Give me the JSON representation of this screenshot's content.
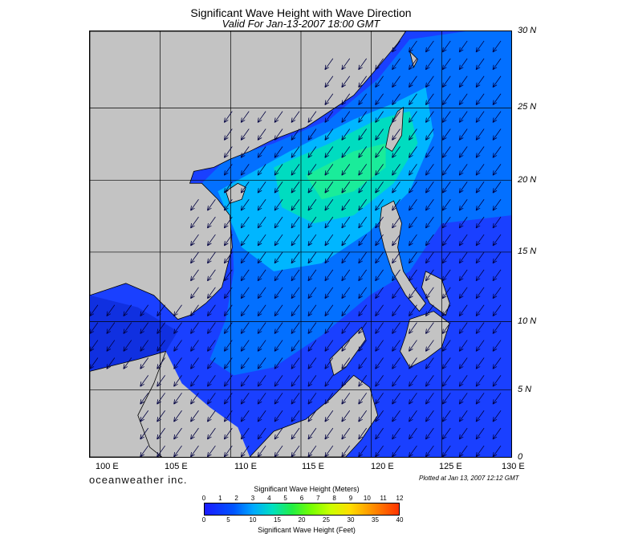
{
  "header": {
    "title": "Significant Wave Height with Wave Direction",
    "valid": "Valid For Jan-13-2007 18:00 GMT"
  },
  "axes": {
    "lat_labels": [
      "30 N",
      "25 N",
      "20 N",
      "15 N",
      "10 N",
      "5 N",
      "0"
    ],
    "lon_labels": [
      "100 E",
      "105 E",
      "110 E",
      "115 E",
      "120 E",
      "125 E",
      "130 E"
    ]
  },
  "footer": {
    "brand": "oceanweather inc.",
    "plotted": "Plotted at Jan 13, 2007 12:12 GMT"
  },
  "colorbar": {
    "title_meters": "Significant Wave Height (Meters)",
    "title_feet": "Significant Wave Height (Feet)",
    "meters_ticks": [
      "0",
      "1",
      "2",
      "3",
      "4",
      "5",
      "6",
      "7",
      "8",
      "9",
      "10",
      "11",
      "12"
    ],
    "feet_ticks": [
      "0",
      "5",
      "10",
      "15",
      "20",
      "25",
      "30",
      "35",
      "40"
    ]
  },
  "colors": {
    "land": "#c3c3c3",
    "low": "#1a1aff",
    "mid": "#00a8ff",
    "high": "#00e0a0",
    "arrow": "#000040"
  }
}
